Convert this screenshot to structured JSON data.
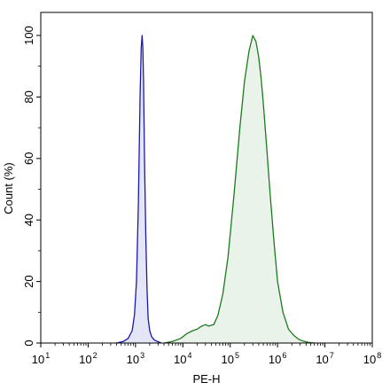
{
  "chart_data": {
    "type": "area",
    "title": "",
    "xlabel": "PE-H",
    "ylabel": "Count  (%)",
    "x_scale": "log10",
    "xlim": [
      10,
      100000000
    ],
    "ylim": [
      0,
      100
    ],
    "x_ticks": [
      {
        "value": 10,
        "base": "10",
        "exp": "1"
      },
      {
        "value": 100,
        "base": "10",
        "exp": "2"
      },
      {
        "value": 1000,
        "base": "10",
        "exp": "3"
      },
      {
        "value": 10000,
        "base": "10",
        "exp": "4"
      },
      {
        "value": 100000,
        "base": "10",
        "exp": "5"
      },
      {
        "value": 1000000,
        "base": "10",
        "exp": "6"
      },
      {
        "value": 10000000,
        "base": "10",
        "exp": "7"
      },
      {
        "value": 100000000,
        "base": "10",
        "exp": "8"
      }
    ],
    "y_ticks": [
      {
        "value": 0,
        "label": "0"
      },
      {
        "value": 20,
        "label": "20"
      },
      {
        "value": 40,
        "label": "40"
      },
      {
        "value": 60,
        "label": "60"
      },
      {
        "value": 80,
        "label": "80"
      },
      {
        "value": 100,
        "label": "100"
      }
    ],
    "grid": false,
    "series": [
      {
        "color": "#1a1aaa",
        "fill": "#e4e6f8",
        "x": [
          400,
          550,
          700,
          850,
          950,
          1050,
          1150,
          1250,
          1320,
          1380,
          1430,
          1480,
          1550,
          1650,
          1750,
          1850,
          2000,
          2200,
          2500,
          3000,
          3500
        ],
        "y": [
          0,
          0.5,
          1.5,
          4,
          9,
          20,
          45,
          80,
          96,
          100,
          96,
          85,
          60,
          35,
          18,
          8,
          4,
          2,
          1,
          0.4,
          0
        ]
      },
      {
        "color": "#1e7a1e",
        "fill": "#e9f3e9",
        "x": [
          4000,
          6000,
          9000,
          12000,
          16000,
          20000,
          25000,
          30000,
          35000,
          45000,
          55000,
          70000,
          90000,
          120000,
          160000,
          200000,
          250000,
          300000,
          350000,
          400000,
          450000,
          500000,
          600000,
          700000,
          850000,
          1000000,
          1300000,
          1700000,
          2200000,
          2800000,
          3500000,
          4500000,
          6000000
        ],
        "y": [
          0,
          0.5,
          1.5,
          3,
          4,
          4.5,
          5.5,
          6,
          5.5,
          6,
          9,
          16,
          28,
          48,
          70,
          85,
          95,
          100,
          98,
          93,
          86,
          78,
          62,
          48,
          32,
          20,
          10,
          4.5,
          2.5,
          1.2,
          0.6,
          0.2,
          0
        ]
      }
    ]
  }
}
